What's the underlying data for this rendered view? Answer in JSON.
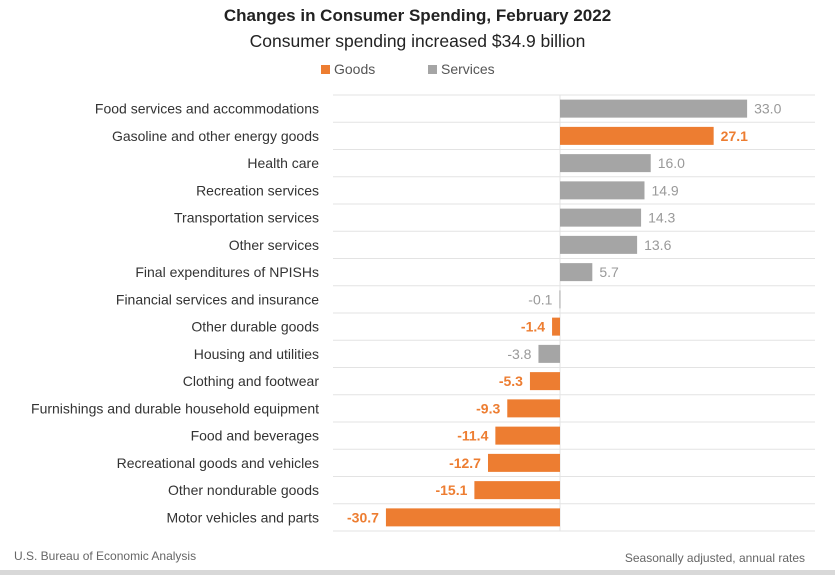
{
  "chart_data": {
    "type": "bar",
    "orientation": "horizontal",
    "title": "Changes in Consumer Spending, February 2022",
    "subtitle": "Consumer spending increased $34.9 billion",
    "legend": {
      "placement": "top",
      "entries": [
        {
          "name": "Goods",
          "color": "#ED7D31"
        },
        {
          "name": "Services",
          "color": "#A5A5A5"
        }
      ]
    },
    "categories": [
      "Food services and accommodations",
      "Gasoline and other energy goods",
      "Health care",
      "Recreation services",
      "Transportation services",
      "Other services",
      "Final expenditures of NPISHs",
      "Financial services and insurance",
      "Other durable goods",
      "Housing and utilities",
      "Clothing and footwear",
      "Furnishings and durable household equipment",
      "Food and beverages",
      "Recreational goods and vehicles",
      "Other nondurable goods",
      "Motor vehicles and parts"
    ],
    "values": [
      33.0,
      27.1,
      16.0,
      14.9,
      14.3,
      13.6,
      5.7,
      -0.1,
      -1.4,
      -3.8,
      -5.3,
      -9.3,
      -11.4,
      -12.7,
      -15.1,
      -30.7
    ],
    "value_labels": [
      "33.0",
      "27.1",
      "16.0",
      "14.9",
      "14.3",
      "13.6",
      "5.7",
      "-0.1",
      "-1.4",
      "-3.8",
      "-5.3",
      "-9.3",
      "-11.4",
      "-12.7",
      "-15.1",
      "-30.7"
    ],
    "series_type": [
      "Services",
      "Goods",
      "Services",
      "Services",
      "Services",
      "Services",
      "Services",
      "Services",
      "Goods",
      "Services",
      "Goods",
      "Goods",
      "Goods",
      "Goods",
      "Goods",
      "Goods"
    ],
    "xlim": [
      -40.5,
      45
    ],
    "grid": "horizontal separators",
    "source": "U.S. Bureau of Economic Analysis",
    "note": "Seasonally adjusted, annual rates"
  }
}
